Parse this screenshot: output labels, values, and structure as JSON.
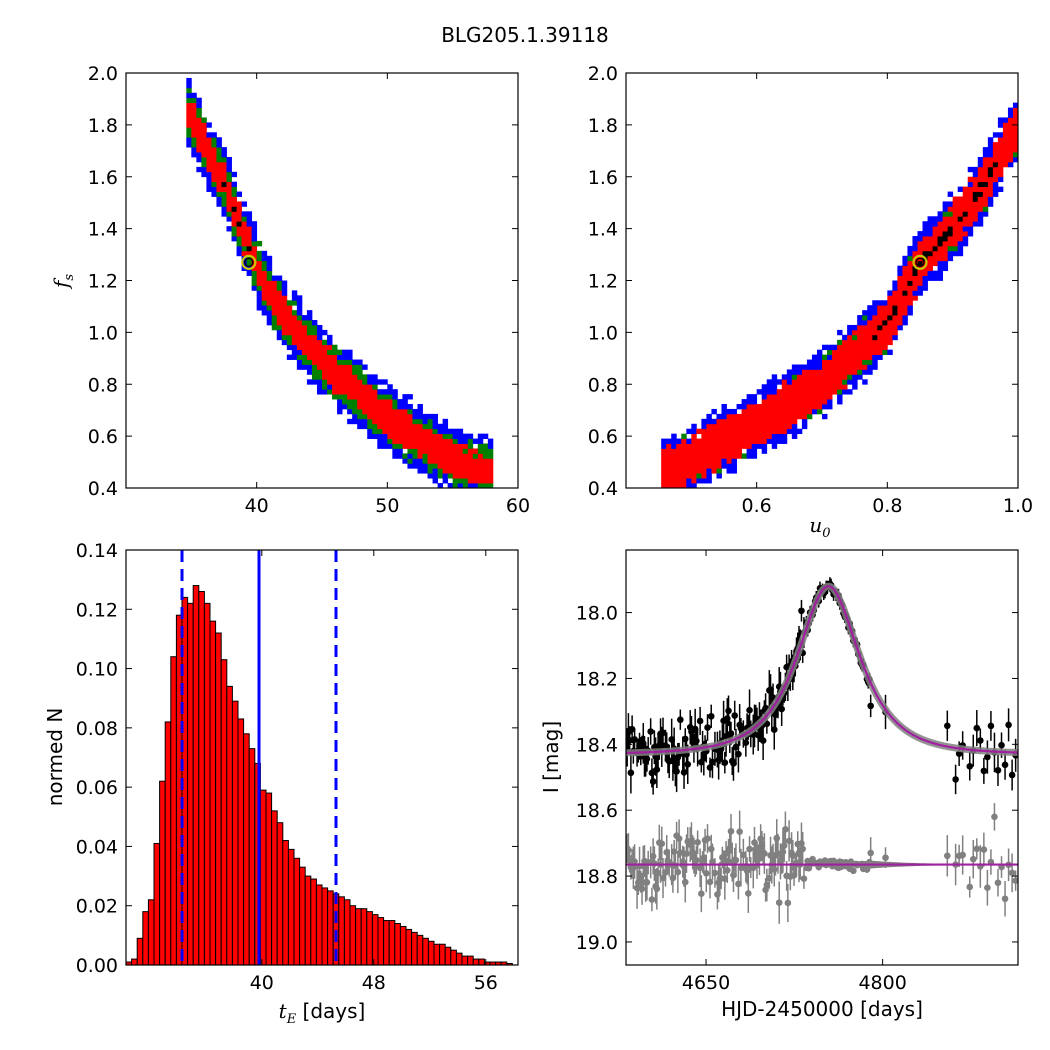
{
  "figure": {
    "title": "BLG205.1.39118"
  },
  "colors": {
    "blue": "#0000ff",
    "green": "#008000",
    "red": "#ff0000",
    "black": "#000000",
    "grey": "#808080",
    "magenta": "#a020a0",
    "marker_edge": "#c8c800"
  },
  "chart_data": [
    {
      "panel": "top-left",
      "type": "heatmap",
      "xlabel": "",
      "ylabel": "f_s",
      "ylabel_main": "f",
      "ylabel_sub": "s",
      "xlim": [
        30,
        60
      ],
      "ylim": [
        0.4,
        2.0
      ],
      "xticks": [
        40,
        50,
        60
      ],
      "xtick_labels": [
        "40",
        "50",
        "60"
      ],
      "yticks": [
        0.4,
        0.6,
        0.8,
        1.0,
        1.2,
        1.4,
        1.6,
        1.8,
        2.0
      ],
      "ytick_labels": [
        "0.4",
        "0.6",
        "0.8",
        "1.0",
        "1.2",
        "1.4",
        "1.6",
        "1.8",
        "2.0"
      ],
      "levels": [
        "blue",
        "green",
        "red",
        "black"
      ],
      "ridge": [
        [
          34.5,
          1.87
        ],
        [
          36,
          1.72
        ],
        [
          37.5,
          1.58
        ],
        [
          39,
          1.38
        ],
        [
          40.5,
          1.2
        ],
        [
          42,
          1.07
        ],
        [
          44,
          0.95
        ],
        [
          46,
          0.84
        ],
        [
          48,
          0.76
        ],
        [
          50,
          0.67
        ],
        [
          52,
          0.6
        ],
        [
          55,
          0.51
        ],
        [
          58,
          0.46
        ]
      ],
      "half_widths": {
        "blue": 2.9,
        "green": 2.0,
        "red": 1.25
      },
      "black_ridge": [
        [
          37.5,
          1.64
        ],
        [
          39.7,
          1.3
        ]
      ],
      "best_fit": {
        "x": 39.4,
        "y": 1.27
      }
    },
    {
      "panel": "top-right",
      "type": "heatmap",
      "xlabel": "u_0",
      "xlabel_main": "u",
      "xlabel_sub": "0",
      "ylabel": "",
      "xlim": [
        0.4,
        1.0
      ],
      "ylim": [
        0.4,
        2.0
      ],
      "xticks": [
        0.6,
        0.8,
        1.0
      ],
      "xtick_labels": [
        "0.6",
        "0.8",
        "1.0"
      ],
      "yticks": [
        0.4,
        0.6,
        0.8,
        1.0,
        1.2,
        1.4,
        1.6,
        1.8,
        2.0
      ],
      "ytick_labels": [
        "0.4",
        "0.6",
        "0.8",
        "1.0",
        "1.2",
        "1.4",
        "1.6",
        "1.8",
        "2.0"
      ],
      "levels": [
        "blue",
        "green",
        "red",
        "black"
      ],
      "ridge": [
        [
          0.455,
          0.455
        ],
        [
          0.5,
          0.51
        ],
        [
          0.6,
          0.65
        ],
        [
          0.7,
          0.8
        ],
        [
          0.8,
          1.03
        ],
        [
          0.85,
          1.27
        ],
        [
          0.9,
          1.4
        ],
        [
          0.95,
          1.58
        ],
        [
          1.0,
          1.8
        ]
      ],
      "half_widths": {
        "blue": 0.075,
        "green": 0.055,
        "red": 0.035
      },
      "black_ridge": [
        [
          0.78,
          1.12
        ],
        [
          0.97,
          1.64
        ]
      ],
      "best_fit": {
        "x": 0.85,
        "y": 1.27
      }
    },
    {
      "panel": "bottom-left",
      "type": "bar",
      "xlabel": "t_E [days]",
      "xlabel_main": "t",
      "xlabel_sub": "E",
      "xlabel_rest": " [days]",
      "ylabel": "normed N",
      "xlim": [
        30.3,
        58.3
      ],
      "ylim": [
        0.0,
        0.14
      ],
      "xticks": [
        40,
        48,
        56
      ],
      "xtick_labels": [
        "40",
        "48",
        "56"
      ],
      "yticks": [
        0.0,
        0.02,
        0.04,
        0.06,
        0.08,
        0.1,
        0.12,
        0.14
      ],
      "ytick_labels": [
        "0.00",
        "0.02",
        "0.04",
        "0.06",
        "0.08",
        "0.10",
        "0.12",
        "0.14"
      ],
      "bin_start": 30.3,
      "bin_width": 0.4,
      "values": [
        0.001,
        0.002,
        0.009,
        0.018,
        0.022,
        0.041,
        0.062,
        0.082,
        0.104,
        0.118,
        0.124,
        0.122,
        0.128,
        0.126,
        0.122,
        0.116,
        0.112,
        0.103,
        0.094,
        0.089,
        0.083,
        0.078,
        0.073,
        0.068,
        0.059,
        0.058,
        0.052,
        0.048,
        0.042,
        0.039,
        0.036,
        0.033,
        0.03,
        0.029,
        0.027,
        0.026,
        0.025,
        0.024,
        0.023,
        0.022,
        0.02,
        0.019,
        0.019,
        0.018,
        0.017,
        0.016,
        0.015,
        0.015,
        0.014,
        0.013,
        0.012,
        0.011,
        0.01,
        0.009,
        0.008,
        0.007,
        0.007,
        0.006,
        0.005,
        0.004,
        0.003,
        0.003,
        0.002,
        0.002,
        0.001,
        0.001,
        0.001,
        0.001,
        0.0005,
        0.0005
      ],
      "median_line": 39.8,
      "dashed_lines": [
        34.3,
        45.3
      ]
    },
    {
      "panel": "bottom-right",
      "type": "scatter",
      "xlabel": "HJD-2450000 [days]",
      "ylabel": "I [mag]",
      "xlim": [
        4582,
        4915
      ],
      "ylim": [
        19.07,
        17.81
      ],
      "yinverted": true,
      "xticks": [
        4650,
        4800
      ],
      "xtick_labels": [
        "4650",
        "4800"
      ],
      "yticks": [
        18.0,
        18.2,
        18.4,
        18.6,
        18.8,
        19.0
      ],
      "ytick_labels": [
        "18.0",
        "18.2",
        "18.4",
        "18.6",
        "18.8",
        "19.0"
      ],
      "model": {
        "baseline": 18.43,
        "peak_time": 4754,
        "peak_mag": 17.92,
        "tE": 38,
        "u0": 0.85
      },
      "residual_baseline": 18.765,
      "data_gap": [
        4790,
        4862
      ],
      "series": [
        {
          "name": "",
          "color": "black"
        },
        {
          "name": "",
          "color": "grey"
        }
      ]
    }
  ]
}
